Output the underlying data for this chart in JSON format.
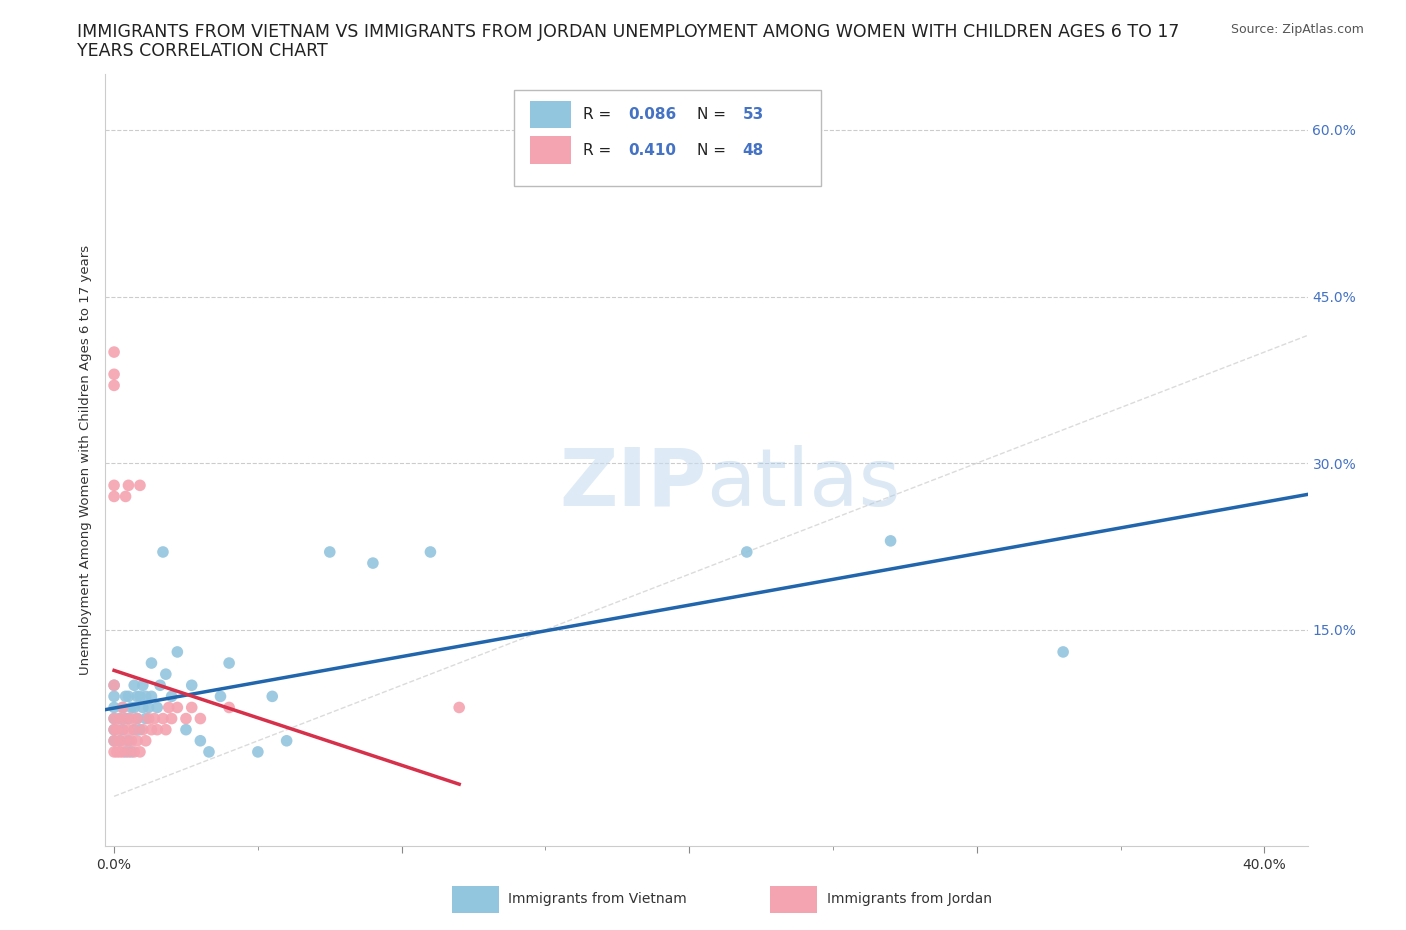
{
  "title_line1": "IMMIGRANTS FROM VIETNAM VS IMMIGRANTS FROM JORDAN UNEMPLOYMENT AMONG WOMEN WITH CHILDREN AGES 6 TO 17",
  "title_line2": "YEARS CORRELATION CHART",
  "source": "Source: ZipAtlas.com",
  "ylabel": "Unemployment Among Women with Children Ages 6 to 17 years",
  "xlim": [
    -0.003,
    0.415
  ],
  "ylim": [
    -0.045,
    0.65
  ],
  "y_ticks": [
    0.0,
    0.15,
    0.3,
    0.45,
    0.6
  ],
  "x_ticks": [
    0.0,
    0.1,
    0.2,
    0.3,
    0.4
  ],
  "watermark_zip": "ZIP",
  "watermark_atlas": "atlas",
  "legend1_label": "Immigrants from Vietnam",
  "legend2_label": "Immigrants from Jordan",
  "R_vietnam": 0.086,
  "N_vietnam": 53,
  "R_jordan": 0.41,
  "N_jordan": 48,
  "color_vietnam": "#92c5de",
  "color_jordan": "#f4a3b0",
  "color_vietnam_line": "#2166ac",
  "color_jordan_line": "#d6304a",
  "color_diag_line": "#cccccc",
  "vietnam_x": [
    0.0,
    0.0,
    0.0,
    0.0,
    0.0,
    0.0,
    0.002,
    0.002,
    0.003,
    0.003,
    0.004,
    0.004,
    0.004,
    0.005,
    0.005,
    0.005,
    0.006,
    0.006,
    0.007,
    0.007,
    0.007,
    0.008,
    0.008,
    0.009,
    0.009,
    0.01,
    0.01,
    0.011,
    0.011,
    0.012,
    0.013,
    0.013,
    0.015,
    0.016,
    0.017,
    0.018,
    0.02,
    0.022,
    0.025,
    0.027,
    0.03,
    0.033,
    0.037,
    0.04,
    0.05,
    0.055,
    0.06,
    0.075,
    0.09,
    0.11,
    0.22,
    0.27,
    0.33
  ],
  "vietnam_y": [
    0.05,
    0.06,
    0.07,
    0.08,
    0.09,
    0.1,
    0.05,
    0.07,
    0.06,
    0.08,
    0.04,
    0.07,
    0.09,
    0.05,
    0.07,
    0.09,
    0.04,
    0.08,
    0.06,
    0.08,
    0.1,
    0.07,
    0.09,
    0.06,
    0.09,
    0.08,
    0.1,
    0.07,
    0.09,
    0.08,
    0.09,
    0.12,
    0.08,
    0.1,
    0.22,
    0.11,
    0.09,
    0.13,
    0.06,
    0.1,
    0.05,
    0.04,
    0.09,
    0.12,
    0.04,
    0.09,
    0.05,
    0.22,
    0.21,
    0.22,
    0.22,
    0.23,
    0.13
  ],
  "jordan_x": [
    0.0,
    0.0,
    0.0,
    0.0,
    0.0,
    0.0,
    0.0,
    0.0,
    0.0,
    0.0,
    0.001,
    0.001,
    0.002,
    0.002,
    0.002,
    0.003,
    0.003,
    0.003,
    0.004,
    0.004,
    0.004,
    0.005,
    0.005,
    0.005,
    0.006,
    0.006,
    0.007,
    0.007,
    0.008,
    0.008,
    0.009,
    0.009,
    0.01,
    0.011,
    0.012,
    0.013,
    0.014,
    0.015,
    0.017,
    0.018,
    0.019,
    0.02,
    0.022,
    0.025,
    0.027,
    0.03,
    0.04,
    0.12
  ],
  "jordan_y": [
    0.04,
    0.05,
    0.06,
    0.07,
    0.1,
    0.27,
    0.28,
    0.37,
    0.38,
    0.4,
    0.04,
    0.06,
    0.04,
    0.05,
    0.07,
    0.04,
    0.06,
    0.08,
    0.05,
    0.07,
    0.27,
    0.04,
    0.06,
    0.28,
    0.05,
    0.07,
    0.04,
    0.06,
    0.05,
    0.07,
    0.04,
    0.28,
    0.06,
    0.05,
    0.07,
    0.06,
    0.07,
    0.06,
    0.07,
    0.06,
    0.08,
    0.07,
    0.08,
    0.07,
    0.08,
    0.07,
    0.08,
    0.08
  ],
  "title_fontsize": 12.5,
  "axis_label_fontsize": 9.5,
  "tick_fontsize": 10,
  "source_fontsize": 9,
  "right_tick_color": "#4472c4"
}
